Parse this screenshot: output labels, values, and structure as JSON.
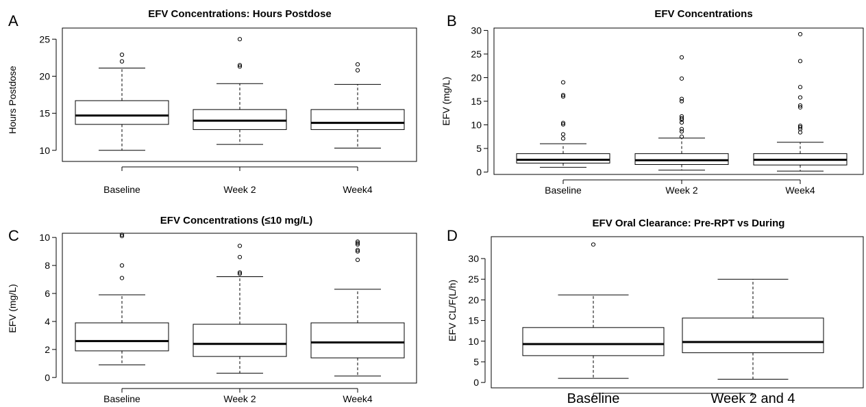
{
  "chart_data": [
    {
      "type": "box",
      "panel_letter": "A",
      "title": "EFV Concentrations: Hours Postdose",
      "xlabel": "",
      "ylabel": "Hours Postdose",
      "ylim": [
        8.5,
        26.5
      ],
      "yticks": [
        10,
        15,
        20,
        25
      ],
      "categories": [
        "Baseline",
        "Week 2",
        "Week4"
      ],
      "boxes": [
        {
          "min": 10.0,
          "q1": 13.5,
          "median": 14.7,
          "q3": 16.7,
          "max": 21.1,
          "outliers": [
            22.0,
            22.9
          ]
        },
        {
          "min": 10.8,
          "q1": 12.8,
          "median": 14.0,
          "q3": 15.5,
          "max": 19.0,
          "outliers": [
            21.3,
            21.5,
            25.0
          ]
        },
        {
          "min": 10.3,
          "q1": 12.8,
          "median": 13.7,
          "q3": 15.5,
          "max": 18.9,
          "outliers": [
            20.8,
            21.6
          ]
        }
      ]
    },
    {
      "type": "box",
      "panel_letter": "B",
      "title": "EFV Concentrations",
      "xlabel": "",
      "ylabel": "EFV (mg/L)",
      "ylim": [
        -0.5,
        30.5
      ],
      "yticks": [
        0,
        5,
        10,
        15,
        20,
        25,
        30
      ],
      "categories": [
        "Baseline",
        "Week 2",
        "Week4"
      ],
      "boxes": [
        {
          "min": 1.0,
          "q1": 1.9,
          "median": 2.6,
          "q3": 3.9,
          "max": 6.0,
          "outliers": [
            7.1,
            8.0,
            10.1,
            10.4,
            16.0,
            16.3,
            19.0
          ]
        },
        {
          "min": 0.4,
          "q1": 1.6,
          "median": 2.5,
          "q3": 3.9,
          "max": 7.2,
          "outliers": [
            7.5,
            8.6,
            9.1,
            10.5,
            11.1,
            11.4,
            11.8,
            15.0,
            15.5,
            19.8,
            24.3
          ]
        },
        {
          "min": 0.2,
          "q1": 1.5,
          "median": 2.6,
          "q3": 3.9,
          "max": 6.3,
          "outliers": [
            8.4,
            9.1,
            9.5,
            9.8,
            13.7,
            14.1,
            15.8,
            18.0,
            23.5,
            29.2
          ]
        }
      ]
    },
    {
      "type": "box",
      "panel_letter": "C",
      "title": "EFV Concentrations (≤10 mg/L)",
      "xlabel": "",
      "ylabel": "EFV (mg/L)",
      "ylim": [
        -0.4,
        10.3
      ],
      "yticks": [
        0,
        2,
        4,
        6,
        8,
        10
      ],
      "categories": [
        "Baseline",
        "Week 2",
        "Week4"
      ],
      "boxes": [
        {
          "min": 0.9,
          "q1": 1.9,
          "median": 2.6,
          "q3": 3.9,
          "max": 5.9,
          "outliers": [
            7.1,
            8.0,
            10.1,
            10.2
          ]
        },
        {
          "min": 0.3,
          "q1": 1.5,
          "median": 2.4,
          "q3": 3.8,
          "max": 7.2,
          "outliers": [
            7.4,
            7.5,
            8.6,
            9.4
          ]
        },
        {
          "min": 0.1,
          "q1": 1.4,
          "median": 2.5,
          "q3": 3.9,
          "max": 6.3,
          "outliers": [
            8.4,
            9.0,
            9.1,
            9.5,
            9.6,
            9.7
          ]
        }
      ]
    },
    {
      "type": "box",
      "panel_letter": "D",
      "title": "EFV Oral Clearance: Pre-RPT vs During",
      "xlabel": "",
      "ylabel": "EFV CL/F(L/h)",
      "ylim": [
        -1.3,
        35.3
      ],
      "yticks": [
        0,
        5,
        10,
        15,
        20,
        25,
        30
      ],
      "categories": [
        "Baseline",
        "Week 2 and 4"
      ],
      "boxes": [
        {
          "min": 1.0,
          "q1": 6.5,
          "median": 9.3,
          "q3": 13.3,
          "max": 21.2,
          "outliers": [
            33.4
          ]
        },
        {
          "min": 0.8,
          "q1": 7.2,
          "median": 9.8,
          "q3": 15.6,
          "max": 25.0,
          "outliers": []
        }
      ]
    }
  ]
}
